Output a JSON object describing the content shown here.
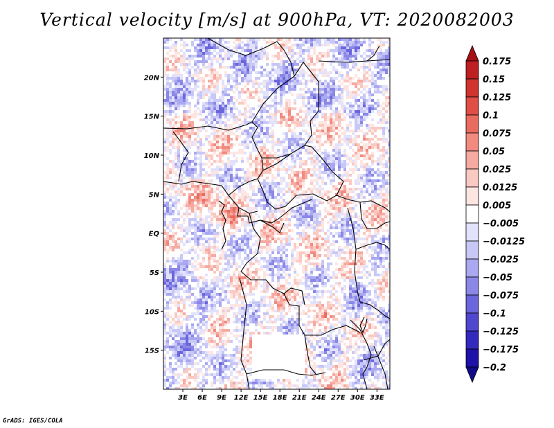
{
  "chart_data": {
    "type": "heatmap",
    "title": "Vertical velocity [m/s] at 900hPa, VT: 2020082003",
    "variable": "Vertical velocity",
    "units": "m/s",
    "level": "900hPa",
    "valid_time": "2020082003",
    "lon_range": [
      0,
      35
    ],
    "lat_range": [
      -20,
      25
    ],
    "x_tick_values": [
      3,
      6,
      9,
      12,
      15,
      18,
      21,
      24,
      27,
      30,
      33
    ],
    "x_tick_labels": [
      "3E",
      "6E",
      "9E",
      "12E",
      "15E",
      "18E",
      "21E",
      "24E",
      "27E",
      "30E",
      "33E"
    ],
    "y_tick_values": [
      20,
      15,
      10,
      5,
      0,
      -5,
      -10,
      -15
    ],
    "y_tick_labels": [
      "20N",
      "15N",
      "10N",
      "5N",
      "EQ",
      "5S",
      "10S",
      "15S"
    ],
    "colorbar_levels": [
      "0.175",
      "0.15",
      "0.125",
      "0.1",
      "0.075",
      "0.05",
      "0.025",
      "0.0125",
      "0.005",
      "−0.005",
      "−0.0125",
      "−0.025",
      "−0.05",
      "−0.075",
      "−0.1",
      "−0.125",
      "−0.175",
      "−0.2"
    ],
    "colorbar_colors": [
      "#a50f15",
      "#bd1f22",
      "#d0342e",
      "#e04e45",
      "#ea6c60",
      "#f28a80",
      "#f6aaa1",
      "#fac9c2",
      "#fde6e2",
      "#ffffff",
      "#e2e2fc",
      "#c8c8f7",
      "#a9a8f0",
      "#8a87e6",
      "#6b66dc",
      "#4f48cf",
      "#3329bd",
      "#1e12a8",
      "#100a8a"
    ]
  },
  "footer": "GrADS: IGES/COLA"
}
